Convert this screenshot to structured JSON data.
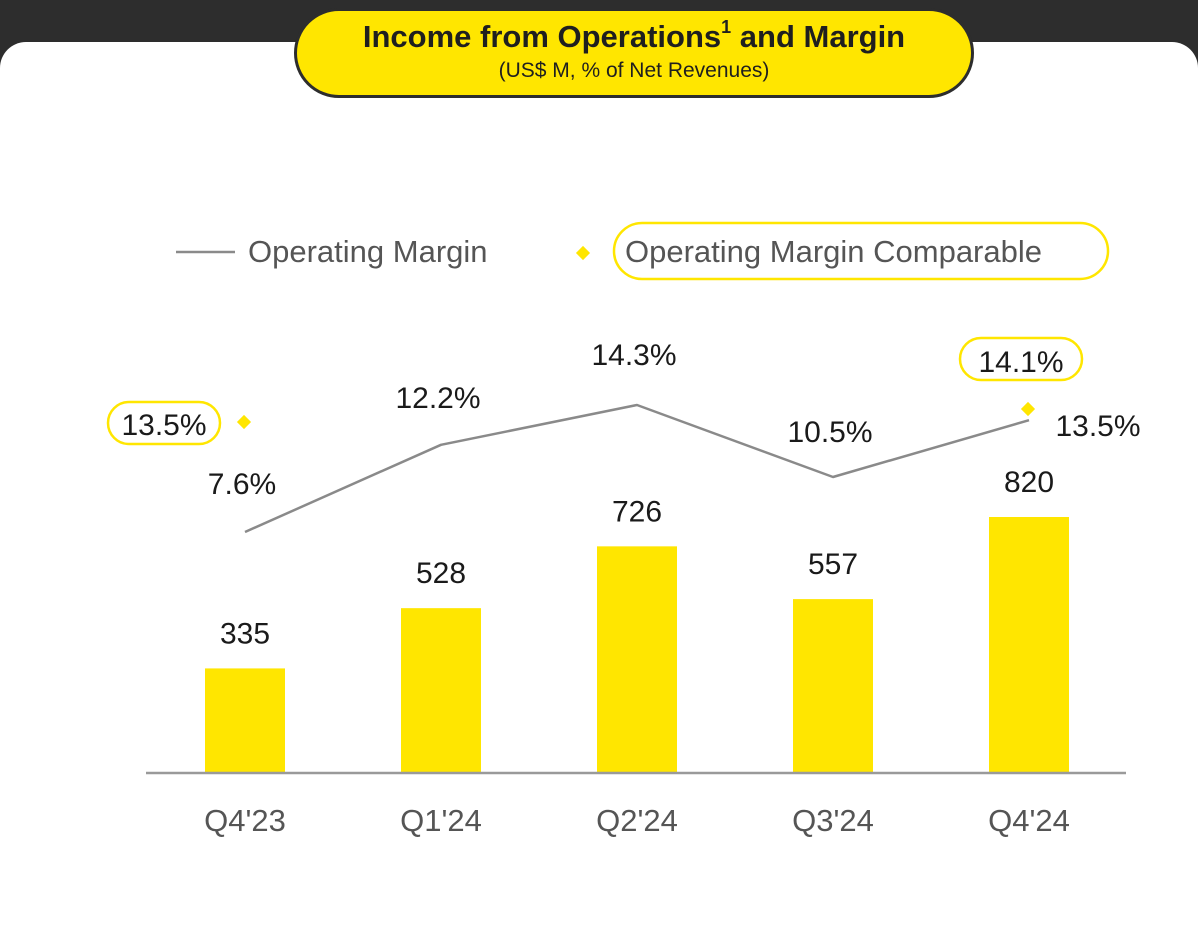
{
  "header": {
    "title_main": "Income from Operations",
    "title_sup": "1",
    "title_rest": " and Margin",
    "subtitle": "(US$ M, % of Net Revenues)"
  },
  "colors": {
    "bar": "#ffe600",
    "line": "#8a8a8a",
    "marker": "#ffe600",
    "text": "#1a1a1a",
    "axis_label": "#555555",
    "pill_border": "#ffe600"
  },
  "chart_data": {
    "type": "bar",
    "title": "Income from Operations1 and Margin",
    "subtitle": "(US$ M, % of Net Revenues)",
    "categories": [
      "Q4'23",
      "Q1'24",
      "Q2'24",
      "Q3'24",
      "Q4'24"
    ],
    "bar_series": {
      "values": [
        335,
        528,
        726,
        557,
        820
      ],
      "labels": [
        "335",
        "528",
        "726",
        "557",
        "820"
      ]
    },
    "line_series": {
      "name": "Operating Margin",
      "values": [
        7.6,
        12.2,
        14.3,
        10.5,
        13.5
      ],
      "labels": [
        "7.6%",
        "12.2%",
        "14.3%",
        "10.5%",
        "13.5%"
      ]
    },
    "comparable_series": {
      "name": "Operating Margin Comparable",
      "values": [
        13.5,
        null,
        null,
        null,
        14.1
      ],
      "labels": [
        "13.5%",
        "",
        "",
        "",
        "14.1%"
      ]
    },
    "legend_position": "top",
    "grid": false
  }
}
